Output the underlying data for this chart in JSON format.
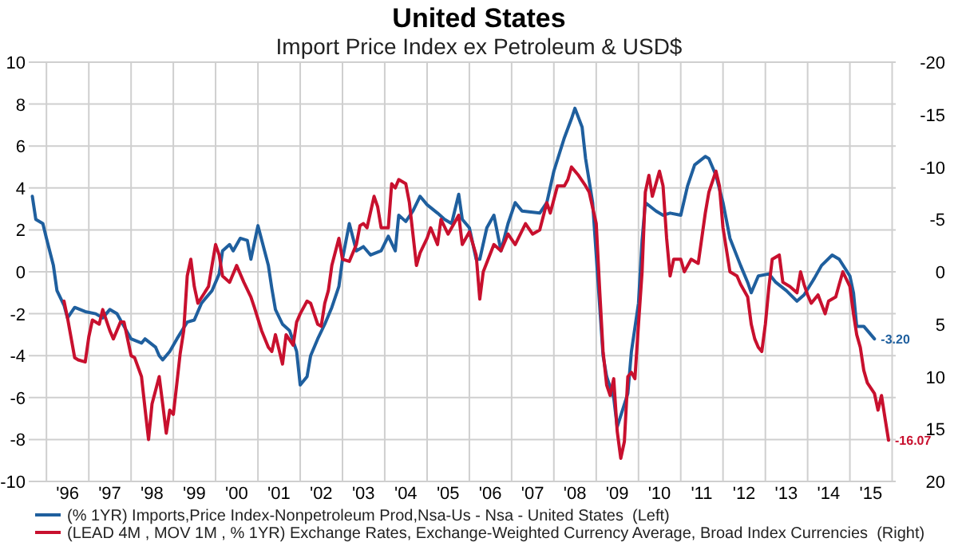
{
  "chart_data": {
    "type": "line",
    "title": "United States",
    "subtitle": "Import Price Index ex Petroleum & USD$",
    "xlim": [
      "1995-08",
      "2016-02"
    ],
    "xticks": [
      {
        "value": "1996",
        "label": null
      },
      {
        "value": "1997",
        "label": null
      },
      {
        "value": "1998",
        "label": null
      },
      {
        "value": "1999",
        "label": null
      },
      {
        "value": "2000",
        "label": null
      },
      {
        "value": "2001",
        "label": null
      },
      {
        "value": "2002",
        "label": null
      },
      {
        "value": "2003",
        "label": null
      },
      {
        "value": "2004",
        "label": null
      },
      {
        "value": "2005",
        "label": null
      },
      {
        "value": "2006",
        "label": null
      },
      {
        "value": "2007",
        "label": null
      },
      {
        "value": "2008",
        "label": null
      },
      {
        "value": "2009",
        "label": null
      },
      {
        "value": "2010",
        "label": null
      },
      {
        "value": "2011",
        "label": null
      },
      {
        "value": "2012",
        "label": null
      },
      {
        "value": "2013",
        "label": null
      },
      {
        "value": "2014",
        "label": null
      },
      {
        "value": "2015",
        "label": null
      },
      {
        "value": "2016",
        "label": null
      },
      {
        "value": "1996-07",
        "label": "'96"
      },
      {
        "value": "1997-07",
        "label": "'97"
      },
      {
        "value": "1998-07",
        "label": "'98"
      },
      {
        "value": "1999-07",
        "label": "'99"
      },
      {
        "value": "2000-07",
        "label": "'00"
      },
      {
        "value": "2001-07",
        "label": "'01"
      },
      {
        "value": "2002-07",
        "label": "'02"
      },
      {
        "value": "2003-07",
        "label": "'03"
      },
      {
        "value": "2004-07",
        "label": "'04"
      },
      {
        "value": "2005-07",
        "label": "'05"
      },
      {
        "value": "2006-07",
        "label": "'06"
      },
      {
        "value": "2007-07",
        "label": "'07"
      },
      {
        "value": "2008-07",
        "label": "'08"
      },
      {
        "value": "2009-07",
        "label": "'09"
      },
      {
        "value": "2010-07",
        "label": "'10"
      },
      {
        "value": "2011-07",
        "label": "'11"
      },
      {
        "value": "2012-07",
        "label": "'12"
      },
      {
        "value": "2013-07",
        "label": "'13"
      },
      {
        "value": "2014-07",
        "label": "'14"
      },
      {
        "value": "2015-07",
        "label": "'15"
      }
    ],
    "ylim": [
      -10,
      10
    ],
    "yticks": [
      -10,
      -8,
      -6,
      -4,
      -2,
      0,
      2,
      4,
      6,
      8,
      10
    ],
    "y2lim": [
      20,
      -20
    ],
    "y2ticks": [
      -20,
      -15,
      -10,
      -5,
      0,
      5,
      10,
      15,
      20
    ],
    "grid": true,
    "legend": "bottom",
    "line_style": "solid",
    "marker": "none",
    "annotations": [
      "-3.20",
      "-16.07"
    ],
    "series": [
      {
        "name": "(% 1YR) Imports,Price Index-Nonpetroleum Prod,Nsa-Us - Nsa - United States  (Left)",
        "color": "#1f5f9e",
        "x": [
          "1995-09",
          "1995-10",
          "1995-12",
          "1996-01",
          "1996-03",
          "1996-04",
          "1996-06",
          "1996-07",
          "1996-09",
          "1996-12",
          "1997-03",
          "1997-05",
          "1997-07",
          "1997-09",
          "1997-11",
          "1998-01",
          "1998-04",
          "1998-05",
          "1998-08",
          "1998-09",
          "1998-10",
          "1998-12",
          "1999-02",
          "1999-05",
          "1999-07",
          "1999-09",
          "1999-12",
          "2000-02",
          "2000-03",
          "2000-05",
          "2000-06",
          "2000-08",
          "2000-10",
          "2000-11",
          "2001-01",
          "2001-04",
          "2001-05",
          "2001-06",
          "2001-08",
          "2001-10",
          "2001-12",
          "2002-01",
          "2002-03",
          "2002-04",
          "2002-06",
          "2002-08",
          "2002-10",
          "2002-12",
          "2003-01",
          "2003-03",
          "2003-05",
          "2003-07",
          "2003-09",
          "2003-12",
          "2004-02",
          "2004-04",
          "2004-05",
          "2004-07",
          "2004-09",
          "2004-11",
          "2005-01",
          "2005-04",
          "2005-06",
          "2005-08",
          "2005-10",
          "2005-11",
          "2006-01",
          "2006-03",
          "2006-04",
          "2006-06",
          "2006-08",
          "2006-10",
          "2006-12",
          "2007-02",
          "2007-04",
          "2007-09",
          "2007-11",
          "2008-01",
          "2008-04",
          "2008-06",
          "2008-07",
          "2008-09",
          "2008-10",
          "2008-12",
          "2009-01",
          "2009-03",
          "2009-04",
          "2009-06",
          "2009-07",
          "2009-10",
          "2009-11",
          "2010-01",
          "2010-02",
          "2010-03",
          "2010-06",
          "2010-08",
          "2010-10",
          "2011-01",
          "2011-03",
          "2011-05",
          "2011-08",
          "2011-09",
          "2011-11",
          "2012-01",
          "2012-03",
          "2012-06",
          "2012-08",
          "2012-09",
          "2012-11",
          "2013-02",
          "2013-04",
          "2013-07",
          "2013-10",
          "2013-12",
          "2014-03",
          "2014-05",
          "2014-08",
          "2014-10",
          "2015-01",
          "2015-02",
          "2015-03",
          "2015-05",
          "2015-06",
          "2015-08"
        ],
        "values": [
          3.6,
          2.5,
          2.3,
          1.6,
          0.3,
          -0.9,
          -1.6,
          -2.2,
          -1.7,
          -1.9,
          -2.0,
          -2.2,
          -1.8,
          -2.0,
          -2.6,
          -3.2,
          -3.4,
          -3.2,
          -3.6,
          -4.0,
          -4.2,
          -3.8,
          -3.2,
          -2.4,
          -2.3,
          -1.5,
          -0.9,
          -0.1,
          1.0,
          1.3,
          1.0,
          1.6,
          1.5,
          0.6,
          2.2,
          0.3,
          -0.8,
          -1.8,
          -2.5,
          -2.8,
          -3.8,
          -5.4,
          -5.0,
          -4.0,
          -3.2,
          -2.5,
          -1.7,
          -0.7,
          0.6,
          2.3,
          1.0,
          1.2,
          0.8,
          1.0,
          1.7,
          1.0,
          2.7,
          2.4,
          2.9,
          3.6,
          3.2,
          2.8,
          2.5,
          2.3,
          3.7,
          2.5,
          2.1,
          0.6,
          0.6,
          2.1,
          2.7,
          1.0,
          2.3,
          3.3,
          2.9,
          2.8,
          3.3,
          4.8,
          6.4,
          7.3,
          7.8,
          6.9,
          5.4,
          3.3,
          0.8,
          -4.0,
          -5.0,
          -6.0,
          -7.4,
          -5.8,
          -3.8,
          -1.5,
          1.5,
          3.3,
          2.9,
          2.7,
          2.8,
          2.7,
          4.1,
          5.1,
          5.5,
          5.4,
          4.6,
          3.3,
          1.6,
          0.3,
          -0.5,
          -1.0,
          -0.2,
          -0.1,
          -0.5,
          -0.9,
          -1.4,
          -1.1,
          -0.3,
          0.3,
          0.8,
          0.6,
          -0.2,
          -1.0,
          -2.6,
          -2.6,
          -2.8,
          -3.2
        ]
      },
      {
        "name": "(LEAD 4M , MOV 1M , % 1YR) Exchange Rates, Exchange-Weighted Currency Average, Broad Index Currencies  (Right)",
        "color": "#c8102e",
        "axis": "y2",
        "x": [
          "1996-06",
          "1996-07",
          "1996-09",
          "1996-10",
          "1996-12",
          "1997-01",
          "1997-02",
          "1997-04",
          "1997-05",
          "1997-07",
          "1997-08",
          "1997-10",
          "1997-11",
          "1998-01",
          "1998-02",
          "1998-04",
          "1998-05",
          "1998-06",
          "1998-07",
          "1998-09",
          "1998-10",
          "1998-11",
          "1998-12",
          "1999-01",
          "1999-02",
          "1999-03",
          "1999-04",
          "1999-05",
          "1999-06",
          "1999-07",
          "1999-08",
          "1999-11",
          "1999-12",
          "2000-01",
          "2000-02",
          "2000-03",
          "2000-05",
          "2000-07",
          "2000-09",
          "2000-11",
          "2000-12",
          "2001-02",
          "2001-04",
          "2001-05",
          "2001-06",
          "2001-08",
          "2001-09",
          "2001-11",
          "2001-12",
          "2002-01",
          "2002-03",
          "2002-04",
          "2002-06",
          "2002-07",
          "2002-08",
          "2002-09",
          "2002-10",
          "2002-12",
          "2003-01",
          "2003-03",
          "2003-05",
          "2003-06",
          "2003-07",
          "2003-08",
          "2003-10",
          "2003-11",
          "2003-12",
          "2004-02",
          "2004-03",
          "2004-04",
          "2004-05",
          "2004-07",
          "2004-08",
          "2004-10",
          "2004-11",
          "2005-01",
          "2005-02",
          "2005-04",
          "2005-05",
          "2005-07",
          "2005-08",
          "2005-10",
          "2005-11",
          "2006-01",
          "2006-03",
          "2006-04",
          "2006-05",
          "2006-08",
          "2006-10",
          "2006-12",
          "2007-02",
          "2007-05",
          "2007-07",
          "2007-09",
          "2007-11",
          "2007-12",
          "2008-02",
          "2008-04",
          "2008-05",
          "2008-06",
          "2008-08",
          "2008-10",
          "2008-11",
          "2009-01",
          "2009-02",
          "2009-03",
          "2009-04",
          "2009-05",
          "2009-06",
          "2009-07",
          "2009-08",
          "2009-09",
          "2009-10",
          "2009-11",
          "2009-12",
          "2010-01",
          "2010-02",
          "2010-03",
          "2010-04",
          "2010-05",
          "2010-07",
          "2010-08",
          "2010-09",
          "2010-10",
          "2010-11",
          "2011-01",
          "2011-02",
          "2011-04",
          "2011-06",
          "2011-08",
          "2011-09",
          "2011-11",
          "2011-12",
          "2012-01",
          "2012-03",
          "2012-05",
          "2012-06",
          "2012-08",
          "2012-09",
          "2012-10",
          "2012-11",
          "2012-12",
          "2013-01",
          "2013-02",
          "2013-03",
          "2013-05",
          "2013-06",
          "2013-08",
          "2013-10",
          "2013-11",
          "2013-12",
          "2014-01",
          "2014-02",
          "2014-04",
          "2014-06",
          "2014-07",
          "2014-09",
          "2014-10",
          "2014-11",
          "2015-01",
          "2015-02",
          "2015-03",
          "2015-04",
          "2015-05",
          "2015-06",
          "2015-08",
          "2015-09",
          "2015-10",
          "2015-11",
          "2015-12"
        ],
        "values": [
          2.8,
          4.4,
          8.2,
          8.4,
          8.6,
          6.2,
          4.6,
          5.0,
          3.6,
          5.6,
          6.4,
          4.8,
          4.8,
          8.0,
          8.2,
          10.0,
          13.0,
          16.0,
          12.6,
          10.0,
          12.6,
          15.4,
          13.2,
          13.6,
          10.6,
          7.8,
          5.6,
          0.4,
          -1.2,
          1.4,
          3.0,
          1.4,
          -0.6,
          -2.6,
          -1.6,
          0.4,
          1.0,
          -0.6,
          1.0,
          2.4,
          3.4,
          5.6,
          7.2,
          7.6,
          6.0,
          8.8,
          6.0,
          7.0,
          4.8,
          4.0,
          2.8,
          3.0,
          5.0,
          5.2,
          3.0,
          1.8,
          -0.6,
          -3.2,
          -1.2,
          -1.0,
          -2.6,
          -4.4,
          -4.6,
          -4.2,
          -7.2,
          -6.2,
          -4.2,
          -4.2,
          -8.4,
          -8.0,
          -8.8,
          -8.4,
          -6.6,
          -0.6,
          -1.8,
          -3.2,
          -4.2,
          -2.6,
          -5.0,
          -3.6,
          -4.2,
          -5.4,
          -2.6,
          -3.8,
          -1.6,
          2.6,
          0.0,
          -2.6,
          -2.0,
          -3.6,
          -2.6,
          -4.6,
          -3.6,
          -4.0,
          -6.6,
          -5.6,
          -8.2,
          -8.2,
          -8.8,
          -10.0,
          -9.2,
          -8.2,
          -7.6,
          -4.6,
          2.0,
          7.6,
          10.8,
          11.8,
          10.2,
          15.2,
          17.8,
          16.2,
          10.0,
          9.6,
          10.2,
          5.0,
          0.0,
          -7.6,
          -9.2,
          -7.2,
          -9.6,
          -8.2,
          -3.2,
          0.4,
          -1.2,
          -1.2,
          0.0,
          -1.2,
          -0.8,
          -5.6,
          -7.6,
          -9.6,
          -8.2,
          -4.2,
          0.0,
          0.4,
          1.2,
          2.4,
          5.0,
          6.4,
          7.2,
          7.6,
          5.0,
          1.4,
          -1.2,
          -1.6,
          1.0,
          1.4,
          2.0,
          0.0,
          1.2,
          2.2,
          3.0,
          2.2,
          4.0,
          2.8,
          2.4,
          1.2,
          0.0,
          1.4,
          4.0,
          6.0,
          7.2,
          9.4,
          10.6,
          11.6,
          13.2,
          11.8,
          14.0,
          16.07
        ]
      }
    ]
  }
}
